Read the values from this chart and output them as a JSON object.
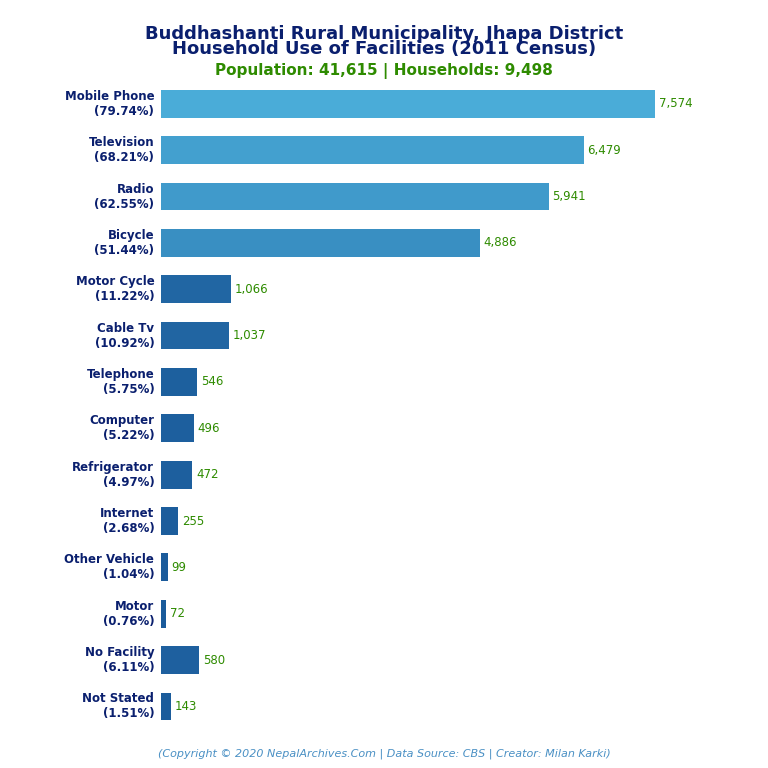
{
  "title_line1": "Buddhashanti Rural Municipality, Jhapa District",
  "title_line2": "Household Use of Facilities (2011 Census)",
  "subtitle": "Population: 41,615 | Households: 9,498",
  "copyright": "(Copyright © 2020 NepalArchives.Com | Data Source: CBS | Creator: Milan Karki)",
  "categories": [
    "Mobile Phone\n(79.74%)",
    "Television\n(68.21%)",
    "Radio\n(62.55%)",
    "Bicycle\n(51.44%)",
    "Motor Cycle\n(11.22%)",
    "Cable Tv\n(10.92%)",
    "Telephone\n(5.75%)",
    "Computer\n(5.22%)",
    "Refrigerator\n(4.97%)",
    "Internet\n(2.68%)",
    "Other Vehicle\n(1.04%)",
    "Motor\n(0.76%)",
    "No Facility\n(6.11%)",
    "Not Stated\n(1.51%)"
  ],
  "values": [
    7574,
    6479,
    5941,
    4886,
    1066,
    1037,
    546,
    496,
    472,
    255,
    99,
    72,
    580,
    143
  ],
  "title_color": "#0a1f6e",
  "subtitle_color": "#2e8b00",
  "bar_color_dark": "#1a5a9a",
  "bar_color_light": "#4aacd8",
  "value_color": "#2e8b00",
  "copyright_color": "#4a90c4",
  "bg_color": "#ffffff",
  "title_fontsize": 13,
  "subtitle_fontsize": 11,
  "label_fontsize": 8.5,
  "value_fontsize": 8.5,
  "copyright_fontsize": 8
}
